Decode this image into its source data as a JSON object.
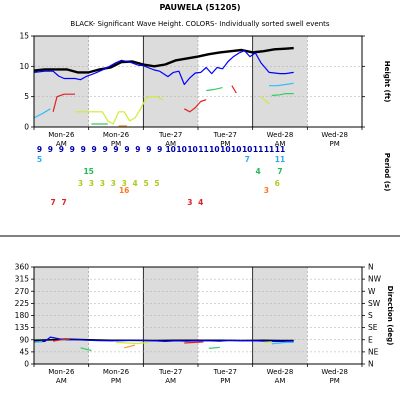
{
  "station": {
    "title": "PAUWELA (51205)"
  },
  "chart_data": [
    {
      "type": "line",
      "subtitle": "BLACK- Significant Wave Height.  COLORS- Individually sorted swell events",
      "xlabel_ticks": [
        {
          "t": 0.5,
          "l1": "Mon-26",
          "l2": "AM"
        },
        {
          "t": 1.5,
          "l1": "Mon-26",
          "l2": "PM"
        },
        {
          "t": 2.5,
          "l1": "Tue-27",
          "l2": "AM"
        },
        {
          "t": 3.5,
          "l1": "Tue-27",
          "l2": "PM"
        },
        {
          "t": 4.5,
          "l1": "Wed-28",
          "l2": "AM"
        },
        {
          "t": 5.5,
          "l1": "Wed-28",
          "l2": "PM"
        }
      ],
      "xlim": [
        0,
        6
      ],
      "ylabel": "Height (ft)",
      "ylim": [
        0,
        15
      ],
      "yticks": [
        0,
        5,
        10,
        15
      ],
      "series": [
        {
          "color": "#000000",
          "width": 2.4,
          "x": [
            0,
            0.2,
            0.4,
            0.6,
            0.8,
            1.0,
            1.2,
            1.4,
            1.6,
            1.8,
            2.0,
            2.2,
            2.4,
            2.6,
            2.8,
            3.0,
            3.2,
            3.4,
            3.6,
            3.8,
            4.0,
            4.2,
            4.4,
            4.6,
            4.75
          ],
          "y": [
            9.3,
            9.5,
            9.5,
            9.5,
            9.0,
            9.0,
            9.5,
            9.8,
            10.7,
            10.8,
            10.3,
            10.0,
            10.3,
            11.0,
            11.3,
            11.6,
            12.0,
            12.3,
            12.5,
            12.7,
            12.3,
            12.5,
            12.8,
            12.9,
            13.0
          ]
        },
        {
          "color": "#0000ff",
          "width": 1.2,
          "x": [
            0,
            0.2,
            0.35,
            0.45,
            0.55,
            0.65,
            0.75,
            0.85,
            0.95,
            1.1,
            1.3,
            1.5,
            1.6,
            1.75,
            1.9,
            2.0,
            2.2,
            2.3,
            2.45,
            2.55,
            2.65,
            2.75,
            2.85,
            2.95,
            3.05,
            3.15,
            3.25,
            3.35,
            3.45,
            3.55,
            3.65,
            3.75,
            3.85,
            3.95,
            4.05,
            4.15,
            4.3,
            4.5,
            4.6,
            4.75
          ],
          "y": [
            9.0,
            9.2,
            9.2,
            8.4,
            8.0,
            8.0,
            8.0,
            7.8,
            8.3,
            8.8,
            9.6,
            10.6,
            11.0,
            10.7,
            10.2,
            10.1,
            9.4,
            9.2,
            8.3,
            9.0,
            9.2,
            7.0,
            8.1,
            8.9,
            9.0,
            9.8,
            8.8,
            9.8,
            9.6,
            10.8,
            11.6,
            12.2,
            12.6,
            11.6,
            12.2,
            10.6,
            9.0,
            8.8,
            8.8,
            9.0
          ]
        },
        {
          "color": "#33bbff",
          "width": 1.2,
          "x": [
            0,
            0.15,
            0.3
          ],
          "y": [
            1.5,
            2.2,
            3.0
          ]
        },
        {
          "color": "#33bbff",
          "width": 1.2,
          "x": [
            4.3,
            4.45,
            4.6,
            4.75
          ],
          "y": [
            6.8,
            6.8,
            7.0,
            7.2
          ]
        },
        {
          "color": "#ccee33",
          "width": 1.2,
          "x": [
            0.75,
            0.85,
            1.0,
            1.1,
            1.25,
            1.35,
            1.45,
            1.55,
            1.65,
            1.75,
            1.85,
            1.95,
            2.05,
            2.15,
            2.25,
            2.35
          ],
          "y": [
            2.5,
            2.5,
            2.5,
            2.5,
            2.5,
            1.0,
            0.5,
            2.5,
            2.5,
            1.0,
            1.5,
            3.0,
            4.8,
            5.0,
            5.0,
            4.5
          ]
        },
        {
          "color": "#ccee33",
          "width": 1.2,
          "x": [
            4.15,
            4.3
          ],
          "y": [
            5.0,
            3.8
          ]
        },
        {
          "color": "#33cc66",
          "width": 1.2,
          "x": [
            1.05,
            1.2,
            1.35
          ],
          "y": [
            0.5,
            0.5,
            0.5
          ]
        },
        {
          "color": "#33cc66",
          "width": 1.2,
          "x": [
            3.15,
            3.3,
            3.45
          ],
          "y": [
            6.0,
            6.2,
            6.5
          ]
        },
        {
          "color": "#33cc66",
          "width": 1.2,
          "x": [
            4.35,
            4.5,
            4.6,
            4.75
          ],
          "y": [
            5.2,
            5.3,
            5.5,
            5.5
          ]
        },
        {
          "color": "#ff9933",
          "width": 1.2,
          "x": [
            1.55,
            1.7
          ],
          "y": [
            0.2,
            0.2
          ]
        },
        {
          "color": "#dd2222",
          "width": 1.2,
          "x": [
            0.35,
            0.42,
            0.55,
            0.75
          ],
          "y": [
            2.5,
            5.0,
            5.4,
            5.4
          ]
        },
        {
          "color": "#dd2222",
          "width": 1.2,
          "x": [
            2.75,
            2.85,
            2.95,
            3.05,
            3.15
          ],
          "y": [
            3.0,
            2.5,
            3.2,
            4.2,
            4.5
          ]
        },
        {
          "color": "#dd2222",
          "width": 1.2,
          "x": [
            3.62,
            3.7
          ],
          "y": [
            6.8,
            5.6
          ]
        }
      ],
      "period_label": "Period (s)",
      "period_rows": [
        {
          "color": "#0000aa",
          "labels": [
            {
              "t": 0.1,
              "v": "9"
            },
            {
              "t": 0.3,
              "v": "9"
            },
            {
              "t": 0.5,
              "v": "9"
            },
            {
              "t": 0.7,
              "v": "9"
            },
            {
              "t": 0.9,
              "v": "9"
            },
            {
              "t": 1.1,
              "v": "9"
            },
            {
              "t": 1.3,
              "v": "9"
            },
            {
              "t": 1.5,
              "v": "9"
            },
            {
              "t": 1.7,
              "v": "9"
            },
            {
              "t": 1.9,
              "v": "9"
            },
            {
              "t": 2.1,
              "v": "9"
            },
            {
              "t": 2.3,
              "v": "9"
            },
            {
              "t": 2.5,
              "v": "10"
            },
            {
              "t": 2.7,
              "v": "10"
            },
            {
              "t": 2.9,
              "v": "10"
            },
            {
              "t": 3.1,
              "v": "11"
            },
            {
              "t": 3.3,
              "v": "10"
            },
            {
              "t": 3.5,
              "v": "10"
            },
            {
              "t": 3.7,
              "v": "10"
            },
            {
              "t": 3.9,
              "v": "10"
            },
            {
              "t": 4.1,
              "v": "11"
            },
            {
              "t": 4.3,
              "v": "11"
            },
            {
              "t": 4.5,
              "v": "11"
            }
          ]
        },
        {
          "color": "#33aaee",
          "labels": [
            {
              "t": 0.1,
              "v": "5"
            },
            {
              "t": 3.9,
              "v": "7"
            },
            {
              "t": 4.5,
              "v": "11"
            }
          ]
        },
        {
          "color": "#22bb55",
          "labels": [
            {
              "t": 1.0,
              "v": "15"
            },
            {
              "t": 4.1,
              "v": "4"
            },
            {
              "t": 4.5,
              "v": "7"
            }
          ]
        },
        {
          "color": "#aacc22",
          "labels": [
            {
              "t": 0.85,
              "v": "3"
            },
            {
              "t": 1.05,
              "v": "3"
            },
            {
              "t": 1.25,
              "v": "3"
            },
            {
              "t": 1.45,
              "v": "3"
            },
            {
              "t": 1.65,
              "v": "3"
            },
            {
              "t": 1.85,
              "v": "4"
            },
            {
              "t": 2.05,
              "v": "5"
            },
            {
              "t": 2.25,
              "v": "5"
            },
            {
              "t": 4.45,
              "v": "6"
            }
          ]
        },
        {
          "color": "#ff7722",
          "labels": [
            {
              "t": 1.65,
              "v": "16"
            },
            {
              "t": 4.25,
              "v": "3"
            }
          ]
        },
        {
          "color": "#dd2222",
          "labels": [
            {
              "t": 0.35,
              "v": "7"
            },
            {
              "t": 0.55,
              "v": "7"
            },
            {
              "t": 2.85,
              "v": "3"
            },
            {
              "t": 3.05,
              "v": "4"
            }
          ]
        }
      ]
    },
    {
      "type": "line",
      "ylabel": "Direction (deg)",
      "ylim": [
        0,
        360
      ],
      "yticks": [
        0,
        45,
        90,
        135,
        180,
        225,
        270,
        315,
        360
      ],
      "compass": [
        "N",
        "NE",
        "E",
        "SE",
        "S",
        "SW",
        "W",
        "NW",
        "N"
      ],
      "xlim": [
        0,
        6
      ],
      "series": [
        {
          "color": "#000000",
          "width": 1.6,
          "x": [
            0,
            0.3,
            0.6,
            1.0,
            1.4,
            1.8,
            2.2,
            2.6,
            3.0,
            3.4,
            3.8,
            4.2,
            4.5,
            4.75
          ],
          "y": [
            88,
            90,
            92,
            90,
            88,
            88,
            87,
            88,
            88,
            88,
            87,
            88,
            87,
            87
          ]
        },
        {
          "color": "#0000ff",
          "width": 1.2,
          "x": [
            0,
            0.2,
            0.3,
            0.45,
            0.6,
            0.8,
            1.0,
            1.2,
            1.4,
            1.6,
            1.8,
            2.0,
            2.2,
            2.4,
            2.6,
            2.8,
            3.0,
            3.2,
            3.4,
            3.6,
            3.8,
            4.0,
            4.2,
            4.4,
            4.6,
            4.75
          ],
          "y": [
            82,
            84,
            100,
            94,
            90,
            90,
            88,
            87,
            86,
            87,
            88,
            88,
            86,
            84,
            86,
            85,
            87,
            86,
            85,
            88,
            87,
            86,
            85,
            84,
            84,
            85
          ]
        },
        {
          "color": "#33bbff",
          "width": 1.2,
          "x": [
            0,
            0.15
          ],
          "y": [
            80,
            84
          ]
        },
        {
          "color": "#33bbff",
          "width": 1.2,
          "x": [
            4.35,
            4.5,
            4.6,
            4.75
          ],
          "y": [
            75,
            78,
            80,
            80
          ]
        },
        {
          "color": "#dd2222",
          "width": 1.2,
          "x": [
            0.35,
            0.5,
            0.65
          ],
          "y": [
            85,
            90,
            92
          ]
        },
        {
          "color": "#dd2222",
          "width": 1.2,
          "x": [
            2.75,
            2.95,
            3.1
          ],
          "y": [
            78,
            80,
            82
          ]
        },
        {
          "color": "#ccee33",
          "width": 1.2,
          "x": [
            1.5,
            1.7,
            1.9,
            2.1
          ],
          "y": [
            80,
            78,
            76,
            80
          ]
        },
        {
          "color": "#ccee33",
          "width": 1.2,
          "x": [
            4.2,
            4.35
          ],
          "y": [
            80,
            82
          ]
        },
        {
          "color": "#ff9933",
          "width": 1.2,
          "x": [
            1.65,
            1.75,
            1.85
          ],
          "y": [
            60,
            65,
            70
          ]
        },
        {
          "color": "#33cc66",
          "width": 1.2,
          "x": [
            0.85,
            0.95,
            1.05
          ],
          "y": [
            60,
            55,
            50
          ]
        },
        {
          "color": "#33cc66",
          "width": 1.2,
          "x": [
            3.2,
            3.4
          ],
          "y": [
            58,
            62
          ]
        }
      ]
    }
  ]
}
